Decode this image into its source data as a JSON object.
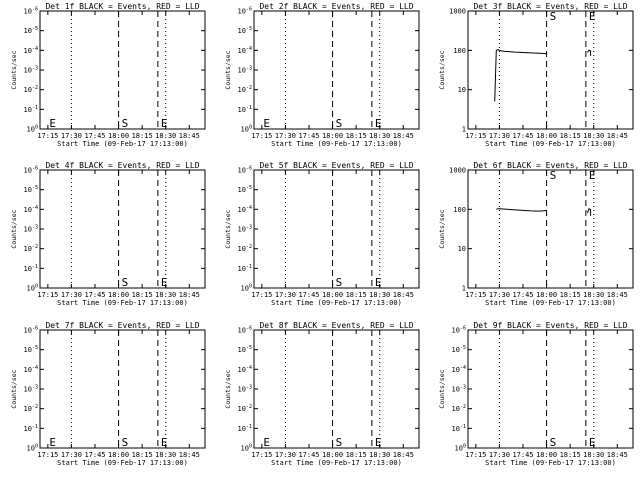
{
  "figure": {
    "background": "#ffffff",
    "axis_color": "#000000",
    "events_color": "#000000",
    "lld_color": "#ff0000"
  },
  "chart_data": [
    {
      "type": "line",
      "title": "Det 1f BLACK = Events, RED = LLD",
      "xlabel": "Start Time (09-Feb-17 17:13:00)",
      "ylabel": "Counts/sec",
      "x_ticks": [
        "17:15",
        "17:30",
        "17:45",
        "18:00",
        "18:15",
        "18:30",
        "18:45"
      ],
      "y_scale": "log",
      "y_ticks": [
        "10^0",
        "10^-1",
        "10^-2",
        "10^-3",
        "10^-4",
        "10^-5",
        "10^-6"
      ],
      "y_values": [
        1,
        0.1,
        0.01,
        0.001,
        0.0001,
        1e-05,
        1e-06
      ],
      "ylim": [
        1,
        1e-06
      ],
      "vlines": {
        "dotted": [
          "17:30",
          "18:30"
        ],
        "dashed": [
          "18:00",
          "18:25"
        ]
      },
      "markers": [
        {
          "label": "E",
          "x": "17:15"
        },
        {
          "label": "S",
          "x": "18:01"
        },
        {
          "label": "E",
          "x": "18:26"
        }
      ],
      "series": []
    },
    {
      "type": "line",
      "title": "Det 2f BLACK = Events, RED = LLD",
      "xlabel": "Start Time (09-Feb-17 17:13:00)",
      "ylabel": "Counts/sec",
      "x_ticks": [
        "17:15",
        "17:30",
        "17:45",
        "18:00",
        "18:15",
        "18:30",
        "18:45"
      ],
      "y_scale": "log",
      "y_ticks": [
        "10^0",
        "10^-1",
        "10^-2",
        "10^-3",
        "10^-4",
        "10^-5",
        "10^-6"
      ],
      "y_values": [
        1,
        0.1,
        0.01,
        0.001,
        0.0001,
        1e-05,
        1e-06
      ],
      "ylim": [
        1,
        1e-06
      ],
      "vlines": {
        "dotted": [
          "17:30",
          "18:30"
        ],
        "dashed": [
          "18:00",
          "18:25"
        ]
      },
      "markers": [
        {
          "label": "E",
          "x": "17:15"
        },
        {
          "label": "S",
          "x": "18:01"
        },
        {
          "label": "E",
          "x": "18:26"
        }
      ],
      "series": []
    },
    {
      "type": "line",
      "title": "Det 3f BLACK = Events, RED = LLD",
      "xlabel": "Start Time (09-Feb-17 17:13:00)",
      "ylabel": "Counts/sec",
      "x_ticks": [
        "17:15",
        "17:30",
        "17:45",
        "18:00",
        "18:15",
        "18:30",
        "18:45"
      ],
      "y_scale": "log",
      "y_ticks": [
        "1000",
        "100",
        "10",
        "1"
      ],
      "y_values": [
        1000,
        100,
        10,
        1
      ],
      "ylim": [
        1,
        1000
      ],
      "vlines": {
        "dotted": [
          "17:30",
          "18:30"
        ],
        "dashed": [
          "18:00",
          "18:25"
        ]
      },
      "markers": [
        {
          "label": "S",
          "x": "18:01"
        },
        {
          "label": "E",
          "x": "18:26"
        }
      ],
      "series": [
        {
          "points": [
            [
              "17:27",
              5
            ],
            [
              "17:28",
              100
            ],
            [
              "17:29",
              104
            ],
            [
              "17:30",
              99
            ],
            [
              "17:33",
              95
            ],
            [
              "17:36",
              93
            ],
            [
              "17:40",
              90
            ],
            [
              "17:45",
              88
            ],
            [
              "17:50",
              86
            ],
            [
              "17:55",
              84
            ],
            [
              "17:59",
              83
            ],
            [
              "18:00",
              82
            ]
          ]
        },
        {
          "points": [
            [
              "18:26",
              88
            ],
            [
              "18:27",
              100
            ],
            [
              "18:28",
              96
            ],
            [
              "18:28",
              72
            ]
          ]
        }
      ]
    },
    {
      "type": "line",
      "title": "Det 4f BLACK = Events, RED = LLD",
      "xlabel": "Start Time (09-Feb-17 17:13:00)",
      "ylabel": "Counts/sec",
      "x_ticks": [
        "17:15",
        "17:30",
        "17:45",
        "18:00",
        "18:15",
        "18:30",
        "18:45"
      ],
      "y_scale": "log",
      "y_ticks": [
        "10^0",
        "10^-1",
        "10^-2",
        "10^-3",
        "10^-4",
        "10^-5",
        "10^-6"
      ],
      "y_values": [
        1,
        0.1,
        0.01,
        0.001,
        0.0001,
        1e-05,
        1e-06
      ],
      "ylim": [
        1,
        1e-06
      ],
      "vlines": {
        "dotted": [
          "17:30",
          "18:30"
        ],
        "dashed": [
          "18:00",
          "18:25"
        ]
      },
      "markers": [
        {
          "label": "S",
          "x": "18:01"
        },
        {
          "label": "E",
          "x": "18:26"
        }
      ],
      "series": []
    },
    {
      "type": "line",
      "title": "Det 5f BLACK = Events, RED = LLD",
      "xlabel": "Start Time (09-Feb-17 17:13:00)",
      "ylabel": "Counts/sec",
      "x_ticks": [
        "17:15",
        "17:30",
        "17:45",
        "18:00",
        "18:15",
        "18:30",
        "18:45"
      ],
      "y_scale": "log",
      "y_ticks": [
        "10^0",
        "10^-1",
        "10^-2",
        "10^-3",
        "10^-4",
        "10^-5",
        "10^-6"
      ],
      "y_values": [
        1,
        0.1,
        0.01,
        0.001,
        0.0001,
        1e-05,
        1e-06
      ],
      "ylim": [
        1,
        1e-06
      ],
      "vlines": {
        "dotted": [
          "17:30",
          "18:30"
        ],
        "dashed": [
          "18:00",
          "18:25"
        ]
      },
      "markers": [
        {
          "label": "S",
          "x": "18:01"
        },
        {
          "label": "E",
          "x": "18:26"
        }
      ],
      "series": []
    },
    {
      "type": "line",
      "title": "Det 6f BLACK = Events, RED = LLD",
      "xlabel": "Start Time (09-Feb-17 17:13:00)",
      "ylabel": "Counts/sec",
      "x_ticks": [
        "17:15",
        "17:30",
        "17:45",
        "18:00",
        "18:15",
        "18:30",
        "18:45"
      ],
      "y_scale": "log",
      "y_ticks": [
        "1000",
        "100",
        "10",
        "1"
      ],
      "y_values": [
        1000,
        100,
        10,
        1
      ],
      "ylim": [
        1,
        1000
      ],
      "vlines": {
        "dotted": [
          "17:30",
          "18:30"
        ],
        "dashed": [
          "18:00",
          "18:25"
        ]
      },
      "markers": [
        {
          "label": "S",
          "x": "18:01"
        },
        {
          "label": "E",
          "x": "18:26"
        }
      ],
      "series": [
        {
          "points": [
            [
              "17:28",
              100
            ],
            [
              "17:29",
              104
            ],
            [
              "17:30",
              103
            ],
            [
              "17:35",
              100
            ],
            [
              "17:40",
              97
            ],
            [
              "17:45",
              94
            ],
            [
              "17:50",
              91
            ],
            [
              "17:55",
              90
            ],
            [
              "17:59",
              92
            ],
            [
              "18:00",
              95
            ]
          ]
        },
        {
          "points": [
            [
              "18:26",
              80
            ],
            [
              "18:27",
              104
            ],
            [
              "18:28",
              98
            ],
            [
              "18:28",
              68
            ]
          ]
        }
      ]
    },
    {
      "type": "line",
      "title": "Det 7f BLACK = Events, RED = LLD",
      "xlabel": "Start Time (09-Feb-17 17:13:00)",
      "ylabel": "Counts/sec",
      "x_ticks": [
        "17:15",
        "17:30",
        "17:45",
        "18:00",
        "18:15",
        "18:30",
        "18:45"
      ],
      "y_scale": "log",
      "y_ticks": [
        "10^0",
        "10^-1",
        "10^-2",
        "10^-3",
        "10^-4",
        "10^-5",
        "10^-6"
      ],
      "y_values": [
        1,
        0.1,
        0.01,
        0.001,
        0.0001,
        1e-05,
        1e-06
      ],
      "ylim": [
        1,
        1e-06
      ],
      "vlines": {
        "dotted": [
          "17:30",
          "18:30"
        ],
        "dashed": [
          "18:00",
          "18:25"
        ]
      },
      "markers": [
        {
          "label": "E",
          "x": "17:15"
        },
        {
          "label": "S",
          "x": "18:01"
        },
        {
          "label": "E",
          "x": "18:26"
        }
      ],
      "series": []
    },
    {
      "type": "line",
      "title": "Det 8f BLACK = Events, RED = LLD",
      "xlabel": "Start Time (09-Feb-17 17:13:00)",
      "ylabel": "Counts/sec",
      "x_ticks": [
        "17:15",
        "17:30",
        "17:45",
        "18:00",
        "18:15",
        "18:30",
        "18:45"
      ],
      "y_scale": "log",
      "y_ticks": [
        "10^0",
        "10^-1",
        "10^-2",
        "10^-3",
        "10^-4",
        "10^-5",
        "10^-6"
      ],
      "y_values": [
        1,
        0.1,
        0.01,
        0.001,
        0.0001,
        1e-05,
        1e-06
      ],
      "ylim": [
        1,
        1e-06
      ],
      "vlines": {
        "dotted": [
          "17:30",
          "18:30"
        ],
        "dashed": [
          "18:00",
          "18:25"
        ]
      },
      "markers": [
        {
          "label": "E",
          "x": "17:15"
        },
        {
          "label": "S",
          "x": "18:01"
        },
        {
          "label": "E",
          "x": "18:26"
        }
      ],
      "series": []
    },
    {
      "type": "line",
      "title": "Det 9f BLACK = Events, RED = LLD",
      "xlabel": "Start Time (09-Feb-17 17:13:00)",
      "ylabel": "Counts/sec",
      "x_ticks": [
        "17:15",
        "17:30",
        "17:45",
        "18:00",
        "18:15",
        "18:30",
        "18:45"
      ],
      "y_scale": "log",
      "y_ticks": [
        "10^0",
        "10^-1",
        "10^-2",
        "10^-3",
        "10^-4",
        "10^-5",
        "10^-6"
      ],
      "y_values": [
        1,
        0.1,
        0.01,
        0.001,
        0.0001,
        1e-05,
        1e-06
      ],
      "ylim": [
        1,
        1e-06
      ],
      "vlines": {
        "dotted": [
          "17:30",
          "18:30"
        ],
        "dashed": [
          "18:00",
          "18:25"
        ]
      },
      "markers": [
        {
          "label": "S",
          "x": "18:01"
        },
        {
          "label": "E",
          "x": "18:26"
        }
      ],
      "series": []
    }
  ]
}
